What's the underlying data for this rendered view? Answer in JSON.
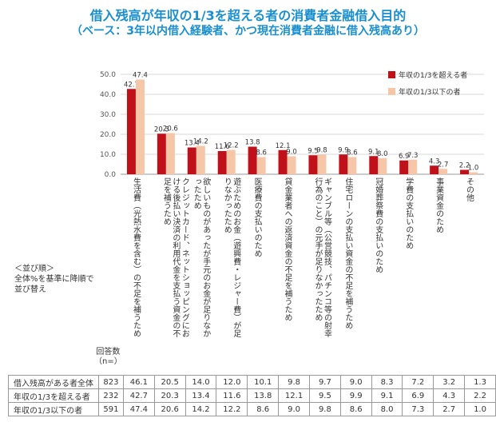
{
  "title": "借入残高が年収の1/3を超える者の消費者金融借入目的",
  "subtitle": "（ベース：3年以内借入経験者、かつ現在消費者金融に借入残高あり）",
  "colors": {
    "series1": "#c0101a",
    "series2": "#f5c6a8",
    "title": "#1a8fd0"
  },
  "sort_note": [
    "＜並び順＞",
    "全体%を基準に降順で",
    "並び替え"
  ],
  "count_header": [
    "回答数",
    "（n=）"
  ],
  "chart_data": {
    "type": "bar",
    "ylim": [
      0,
      50
    ],
    "yticks": [
      "0.0",
      "10.0",
      "20.0",
      "30.0",
      "40.0",
      "50.0"
    ],
    "categories": [
      "生活費（光熱水費を含む）の不足を補うため",
      "クレジットカード、ネットショッピングにおける後払い決済の利用代金を支払う資金の不足を補うため",
      "欲しいものがあったが手元のお金が足りなかったため",
      "遊ぶためのお金（遊興費・レジャー費）が足りなかったため",
      "医療費の支払いのため",
      "貸金業者への返済資金の不足を補うため",
      "ギャンブル等（公営競技、パチンコ等の射幸行為のこと）の元手が足りなかったため",
      "住宅ローンの支払い資金の不足を補うため",
      "冠婚葬祭費の支払いのため",
      "学費の支払いのため",
      "事業資金のため",
      "その他"
    ],
    "series": [
      {
        "name": "年収の1/3を超える者",
        "values": [
          42.7,
          20.3,
          13.4,
          11.6,
          13.8,
          12.1,
          9.5,
          9.9,
          9.1,
          6.9,
          4.3,
          2.2
        ]
      },
      {
        "name": "年収の1/3以下の者",
        "values": [
          47.4,
          20.6,
          14.2,
          12.2,
          8.6,
          9.0,
          9.8,
          8.6,
          8.0,
          7.3,
          2.7,
          1.0
        ]
      }
    ],
    "value_labels": [
      [
        "42.7",
        "20.3",
        "13.4",
        "11.6",
        "13.8",
        "12.1",
        "9.5",
        "9.9",
        "9.1",
        "6.9",
        "4.3",
        "2.2"
      ],
      [
        "47.4",
        "20.6",
        "14.2",
        "12.2",
        "8.6",
        "9.0",
        "9.8",
        "8.6",
        "8.0",
        "7.3",
        "2.7",
        "1.0"
      ]
    ],
    "legend_position": "top-right"
  },
  "table": {
    "rows": [
      {
        "label": "借入残高がある者全体",
        "n": "823",
        "values": [
          "46.1",
          "20.5",
          "14.0",
          "12.0",
          "10.1",
          "9.8",
          "9.7",
          "9.0",
          "8.3",
          "7.2",
          "3.2",
          "1.3"
        ]
      },
      {
        "label": "年収の1/3を超える者",
        "n": "232",
        "values": [
          "42.7",
          "20.3",
          "13.4",
          "11.6",
          "13.8",
          "12.1",
          "9.5",
          "9.9",
          "9.1",
          "6.9",
          "4.3",
          "2.2"
        ]
      },
      {
        "label": "年収の1/3以下の者",
        "n": "591",
        "values": [
          "47.4",
          "20.6",
          "14.2",
          "12.2",
          "8.6",
          "9.0",
          "9.8",
          "8.6",
          "8.0",
          "7.3",
          "2.7",
          "1.0"
        ]
      }
    ]
  }
}
